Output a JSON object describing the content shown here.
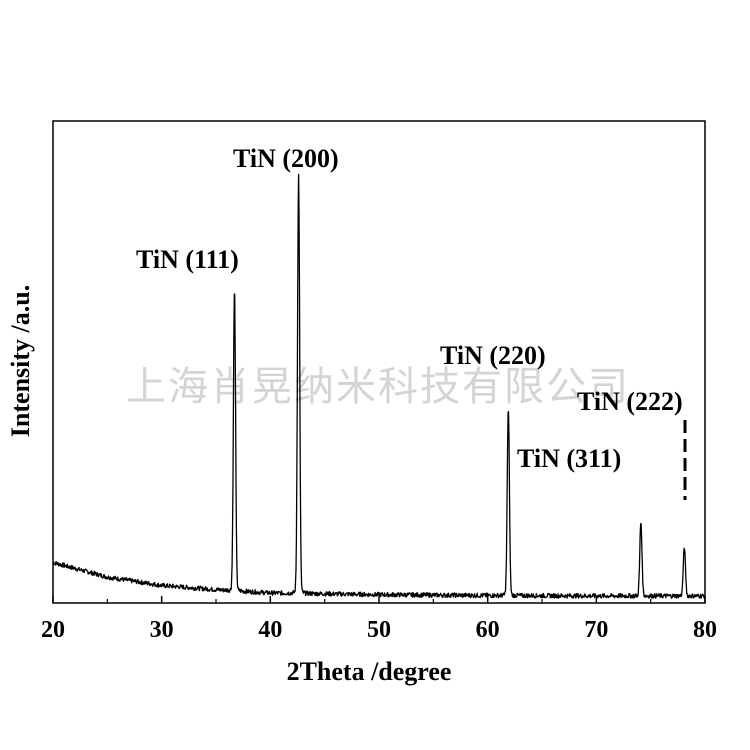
{
  "watermark": "上海肖晃纳米科技有限公司",
  "chart_data": {
    "type": "line",
    "title": "",
    "xlabel": "2Theta /degree",
    "ylabel": "Intensity /a.u.",
    "xlim": [
      20,
      80
    ],
    "ylim": [
      0,
      100
    ],
    "xticks": [
      20,
      30,
      40,
      50,
      60,
      70,
      80
    ],
    "yticks": [],
    "grid": false,
    "legend": "none",
    "line_color": "#000000",
    "series": [
      {
        "values_description": "XRD pattern; sharp peaks at listed positions above a slowly decaying background",
        "baseline": [
          {
            "x": 20,
            "y": 8.5
          },
          {
            "x": 25,
            "y": 5.0
          },
          {
            "x": 30,
            "y": 3.0
          },
          {
            "x": 35,
            "y": 2.0
          },
          {
            "x": 40,
            "y": 1.2
          },
          {
            "x": 50,
            "y": 0.8
          },
          {
            "x": 60,
            "y": 0.6
          },
          {
            "x": 70,
            "y": 0.5
          },
          {
            "x": 80,
            "y": 0.5
          }
        ],
        "peaks": [
          {
            "x": 36.7,
            "y": 73
          },
          {
            "x": 42.6,
            "y": 100
          },
          {
            "x": 61.9,
            "y": 45
          },
          {
            "x": 74.1,
            "y": 18
          },
          {
            "x": 78.1,
            "y": 12
          }
        ]
      }
    ],
    "annotations": [
      {
        "text": "TiN (111)",
        "x": 36.7
      },
      {
        "text": "TiN (200)",
        "x": 42.6
      },
      {
        "text": "TiN (220)",
        "x": 61.9
      },
      {
        "text": "TiN (311)",
        "x": 74.1
      },
      {
        "text": "TiN (222)",
        "x": 78.1
      }
    ]
  }
}
